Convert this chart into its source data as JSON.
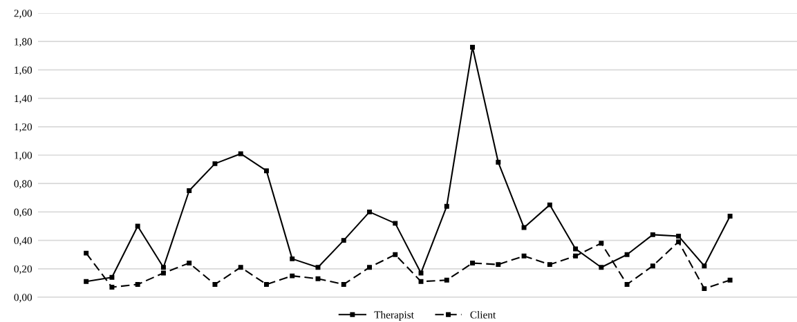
{
  "chart_data": {
    "type": "line",
    "categories": [
      null,
      null,
      null,
      null,
      null,
      null,
      null,
      null,
      null,
      null,
      null,
      null,
      null,
      null,
      null,
      null,
      null,
      null,
      null,
      null,
      null,
      null,
      null,
      null,
      null,
      null
    ],
    "series": [
      {
        "name": "Therapist",
        "color": "#000000",
        "line_style": "solid",
        "values": [
          0.11,
          0.14,
          0.5,
          0.21,
          0.75,
          0.94,
          1.01,
          0.89,
          0.27,
          0.21,
          0.4,
          0.6,
          0.52,
          0.17,
          0.64,
          1.76,
          0.95,
          0.49,
          0.65,
          0.34,
          0.21,
          0.3,
          0.44,
          0.43,
          0.22,
          0.57
        ]
      },
      {
        "name": "Client",
        "color": "#000000",
        "line_style": "dashed",
        "values": [
          0.31,
          0.07,
          0.09,
          0.17,
          0.24,
          0.09,
          0.21,
          0.09,
          0.15,
          0.13,
          0.09,
          0.21,
          0.3,
          0.11,
          0.12,
          0.24,
          0.23,
          0.29,
          0.23,
          0.29,
          0.38,
          0.09,
          0.22,
          0.39,
          0.06,
          0.12
        ]
      }
    ],
    "ylim": [
      0,
      2
    ],
    "yticks": [
      {
        "value": 0,
        "label": "0,00"
      },
      {
        "value": 0.2,
        "label": "0,20"
      },
      {
        "value": 0.4,
        "label": "0,40"
      },
      {
        "value": 0.6,
        "label": "0,60"
      },
      {
        "value": 0.8,
        "label": "0,80"
      },
      {
        "value": 1.0,
        "label": "1,00"
      },
      {
        "value": 1.2,
        "label": "1,20"
      },
      {
        "value": 1.4,
        "label": "1,40"
      },
      {
        "value": 1.6,
        "label": "1,60"
      },
      {
        "value": 1.8,
        "label": "1,80"
      },
      {
        "value": 2.0,
        "label": "2,00"
      }
    ],
    "tick_labels": "y",
    "grid": "y",
    "legend": "bottom",
    "marker": "square"
  }
}
